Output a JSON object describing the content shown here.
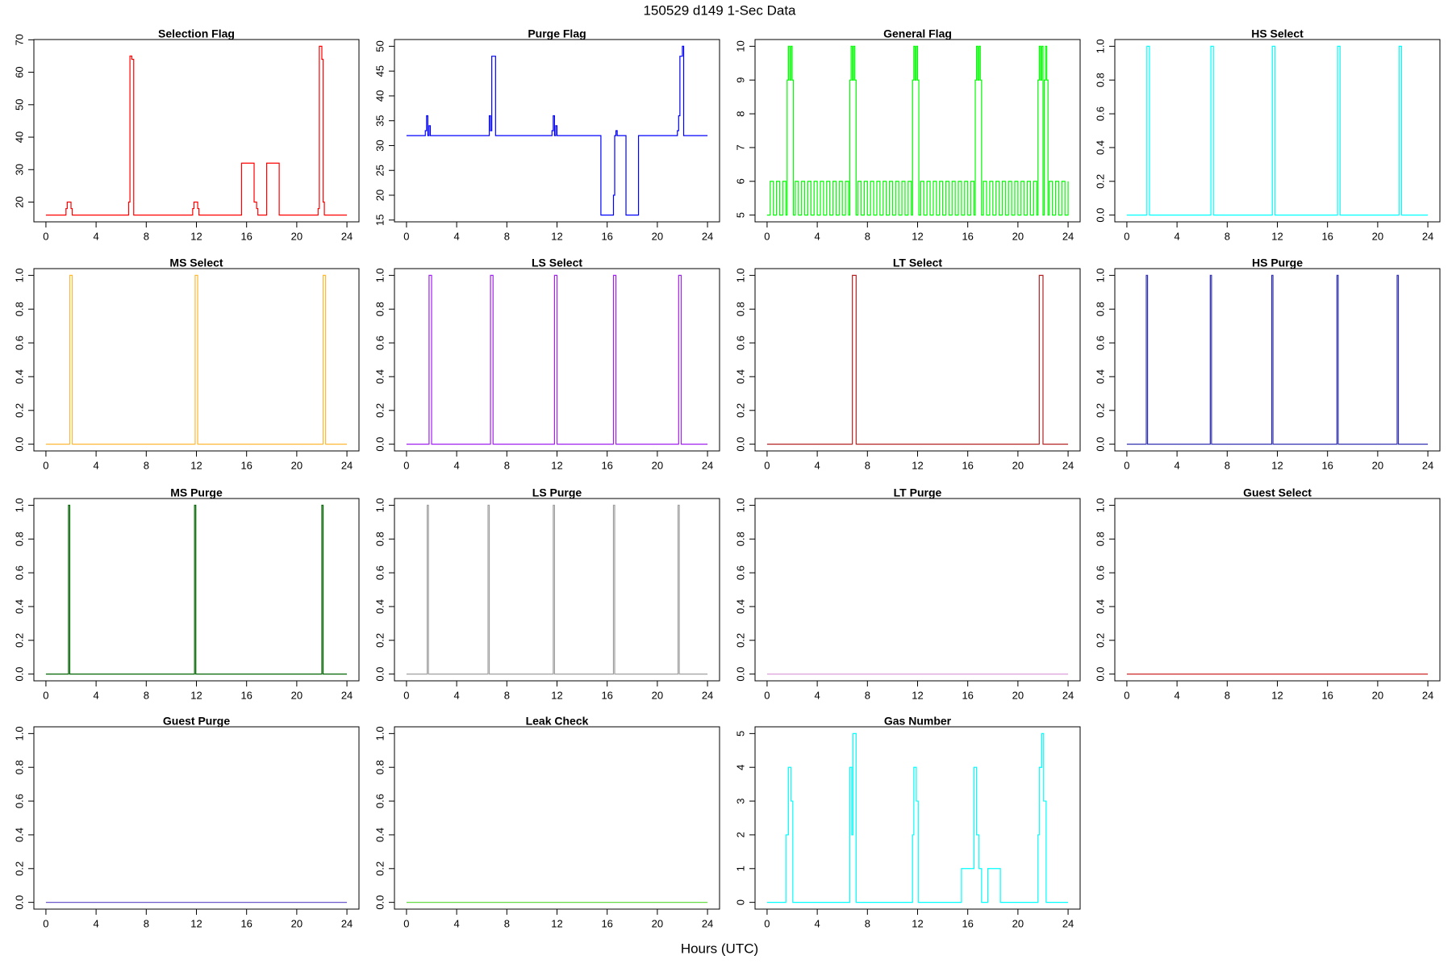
{
  "title": "150529   d149   1-Sec Data",
  "x_label": "Hours (UTC)",
  "chart_data": [
    {
      "type": "step",
      "title": "Selection Flag",
      "color": "#ff0000",
      "x": [
        0,
        1.6,
        1.7,
        2.0,
        2.1,
        6.6,
        6.7,
        6.85,
        7.0,
        11.7,
        11.8,
        12.1,
        12.2,
        15.6,
        16.6,
        16.8,
        16.9,
        17.6,
        18.6,
        21.7,
        21.8,
        22.0,
        22.1,
        22.2,
        24
      ],
      "values": [
        16,
        18,
        20,
        18,
        16,
        20,
        65,
        64,
        16,
        18,
        20,
        18,
        16,
        32,
        20,
        18,
        16,
        32,
        16,
        18,
        68,
        64,
        20,
        16,
        16
      ],
      "xlim": [
        -0.96,
        24.96
      ],
      "ylim": [
        13.92,
        70.08
      ],
      "xticks": [
        0,
        4,
        8,
        12,
        16,
        20,
        24
      ],
      "yticks": [
        20,
        30,
        40,
        50,
        60,
        70
      ]
    },
    {
      "type": "step",
      "title": "Purge Flag",
      "color": "#0000ff",
      "x": [
        0,
        1.5,
        1.6,
        1.7,
        1.8,
        1.9,
        6.6,
        6.7,
        6.8,
        7.1,
        11.6,
        11.7,
        11.8,
        11.9,
        12.0,
        15.5,
        16.5,
        16.6,
        16.7,
        16.8,
        17.5,
        18.5,
        21.6,
        21.7,
        21.8,
        22.0,
        22.1,
        24
      ],
      "values": [
        32,
        33,
        36,
        32,
        34,
        32,
        36,
        33,
        48,
        32,
        33,
        36,
        32,
        34,
        32,
        16,
        20,
        32,
        33,
        32,
        16,
        32,
        33,
        36,
        48,
        50,
        32,
        32
      ],
      "xlim": [
        -0.96,
        24.96
      ],
      "ylim": [
        14.64,
        51.36
      ],
      "xticks": [
        0,
        4,
        8,
        12,
        16,
        20,
        24
      ],
      "yticks": [
        15,
        20,
        25,
        30,
        35,
        40,
        45,
        50
      ]
    },
    {
      "type": "step",
      "title": "General Flag",
      "color": "#00ff00",
      "x": [
        0,
        0.25,
        0.5,
        0.75,
        1,
        1.25,
        1.5,
        1.6,
        1.7,
        1.8,
        1.9,
        2.0,
        2.1,
        2.25,
        2.5,
        2.75,
        3,
        3.25,
        3.5,
        3.75,
        4,
        4.25,
        4.5,
        4.75,
        5,
        5.25,
        5.5,
        5.75,
        6,
        6.25,
        6.5,
        6.6,
        6.7,
        6.8,
        6.9,
        7.0,
        7.1,
        7.25,
        7.5,
        7.75,
        8,
        8.25,
        8.5,
        8.75,
        9,
        9.25,
        9.5,
        9.75,
        10,
        10.25,
        10.5,
        10.75,
        11,
        11.25,
        11.5,
        11.6,
        11.7,
        11.8,
        11.9,
        12.0,
        12.1,
        12.25,
        12.5,
        12.75,
        13,
        13.25,
        13.5,
        13.75,
        14,
        14.25,
        14.5,
        14.75,
        15,
        15.25,
        15.5,
        15.75,
        16,
        16.25,
        16.5,
        16.6,
        16.7,
        16.8,
        16.9,
        17.0,
        17.1,
        17.25,
        17.5,
        17.75,
        18,
        18.25,
        18.5,
        18.75,
        19,
        19.25,
        19.5,
        19.75,
        20,
        20.25,
        20.5,
        20.75,
        21,
        21.25,
        21.5,
        21.6,
        21.7,
        21.8,
        21.9,
        22.0,
        22.1,
        22.2,
        22.3,
        22.4,
        22.5,
        22.75,
        23,
        23.25,
        23.5,
        23.75,
        24
      ],
      "values": [
        5,
        6,
        5,
        6,
        5,
        6,
        5,
        9,
        10,
        9,
        10,
        9,
        5,
        6,
        5,
        6,
        5,
        6,
        5,
        6,
        5,
        6,
        5,
        6,
        5,
        6,
        5,
        6,
        5,
        6,
        5,
        9,
        10,
        9,
        10,
        9,
        5,
        6,
        5,
        6,
        5,
        6,
        5,
        6,
        5,
        6,
        5,
        6,
        5,
        6,
        5,
        6,
        5,
        6,
        5,
        9,
        10,
        9,
        10,
        9,
        5,
        6,
        5,
        6,
        5,
        6,
        5,
        6,
        5,
        6,
        5,
        6,
        5,
        6,
        5,
        6,
        5,
        6,
        5,
        9,
        10,
        9,
        10,
        9,
        5,
        6,
        5,
        6,
        5,
        6,
        5,
        6,
        5,
        6,
        5,
        6,
        5,
        6,
        5,
        6,
        5,
        6,
        5,
        9,
        10,
        9,
        10,
        5,
        9,
        10,
        9,
        5,
        6,
        5,
        6,
        5,
        6,
        5,
        6
      ],
      "xlim": [
        -0.96,
        24.96
      ],
      "ylim": [
        4.8,
        10.2
      ],
      "xticks": [
        0,
        4,
        8,
        12,
        16,
        20,
        24
      ],
      "yticks": [
        5,
        6,
        7,
        8,
        9,
        10
      ]
    },
    {
      "type": "step",
      "title": "HS Select",
      "color": "#00ffff",
      "x": [
        0,
        1.6,
        1.8,
        6.7,
        6.9,
        11.6,
        11.8,
        16.8,
        17.0,
        21.7,
        21.9,
        24
      ],
      "values": [
        0,
        1,
        0,
        1,
        0,
        1,
        0,
        1,
        0,
        1,
        0,
        0
      ],
      "xlim": [
        -0.96,
        24.96
      ],
      "ylim": [
        -0.04,
        1.04
      ],
      "xticks": [
        0,
        4,
        8,
        12,
        16,
        20,
        24
      ],
      "yticks": [
        {
          "value": 0,
          "label": "0.0"
        },
        0.2,
        0.4,
        0.6,
        0.8,
        {
          "value": 1,
          "label": "1.0"
        }
      ]
    },
    {
      "type": "step",
      "title": "MS Select",
      "color": "#ffb833",
      "x": [
        0,
        1.9,
        2.1,
        11.9,
        12.1,
        22.1,
        22.3,
        24
      ],
      "values": [
        0,
        1,
        0,
        1,
        0,
        1,
        0,
        0
      ],
      "xlim": [
        -0.96,
        24.96
      ],
      "ylim": [
        -0.04,
        1.04
      ],
      "xticks": [
        0,
        4,
        8,
        12,
        16,
        20,
        24
      ],
      "yticks": [
        {
          "value": 0,
          "label": "0.0"
        },
        0.2,
        0.4,
        0.6,
        0.8,
        {
          "value": 1,
          "label": "1.0"
        }
      ]
    },
    {
      "type": "step",
      "title": "LS Select",
      "color": "#a020f0",
      "x": [
        0,
        1.8,
        2.0,
        6.7,
        6.9,
        11.8,
        12.0,
        16.5,
        16.7,
        21.7,
        21.9,
        24
      ],
      "values": [
        0,
        1,
        0,
        1,
        0,
        1,
        0,
        1,
        0,
        1,
        0,
        0
      ],
      "xlim": [
        -0.96,
        24.96
      ],
      "ylim": [
        -0.04,
        1.04
      ],
      "xticks": [
        0,
        4,
        8,
        12,
        16,
        20,
        24
      ],
      "yticks": [
        {
          "value": 0,
          "label": "0.0"
        },
        0.2,
        0.4,
        0.6,
        0.8,
        {
          "value": 1,
          "label": "1.0"
        }
      ]
    },
    {
      "type": "step",
      "title": "LT Select",
      "color": "#b22222",
      "x": [
        0,
        6.8,
        7.1,
        21.7,
        22.0,
        24
      ],
      "values": [
        0,
        1,
        0,
        1,
        0,
        0
      ],
      "xlim": [
        -0.96,
        24.96
      ],
      "ylim": [
        -0.04,
        1.04
      ],
      "xticks": [
        0,
        4,
        8,
        12,
        16,
        20,
        24
      ],
      "yticks": [
        {
          "value": 0,
          "label": "0.0"
        },
        0.2,
        0.4,
        0.6,
        0.8,
        {
          "value": 1,
          "label": "1.0"
        }
      ]
    },
    {
      "type": "step",
      "title": "HS Purge",
      "color": "#3030b0",
      "x": [
        0,
        1.55,
        1.65,
        6.65,
        6.75,
        11.55,
        11.65,
        16.75,
        16.85,
        21.55,
        21.65,
        24
      ],
      "values": [
        0,
        1,
        0,
        1,
        0,
        1,
        0,
        1,
        0,
        1,
        0,
        0
      ],
      "xlim": [
        -0.96,
        24.96
      ],
      "ylim": [
        -0.04,
        1.04
      ],
      "xticks": [
        0,
        4,
        8,
        12,
        16,
        20,
        24
      ],
      "yticks": [
        {
          "value": 0,
          "label": "0.0"
        },
        0.2,
        0.4,
        0.6,
        0.8,
        {
          "value": 1,
          "label": "1.0"
        }
      ]
    },
    {
      "type": "step",
      "title": "MS Purge",
      "color": "#006400",
      "x": [
        0,
        1.8,
        1.9,
        11.85,
        11.95,
        22.0,
        22.1,
        24
      ],
      "values": [
        0,
        1,
        0,
        1,
        0,
        1,
        0,
        0
      ],
      "xlim": [
        -0.96,
        24.96
      ],
      "ylim": [
        -0.04,
        1.04
      ],
      "xticks": [
        0,
        4,
        8,
        12,
        16,
        20,
        24
      ],
      "yticks": [
        {
          "value": 0,
          "label": "0.0"
        },
        0.2,
        0.4,
        0.6,
        0.8,
        {
          "value": 1,
          "label": "1.0"
        }
      ]
    },
    {
      "type": "step",
      "title": "LS Purge",
      "color": "#a0a0a0",
      "x": [
        0,
        1.65,
        1.75,
        6.5,
        6.6,
        11.7,
        11.8,
        16.5,
        16.6,
        21.65,
        21.75,
        24
      ],
      "values": [
        0,
        1,
        0,
        1,
        0,
        1,
        0,
        1,
        0,
        1,
        0,
        0
      ],
      "xlim": [
        -0.96,
        24.96
      ],
      "ylim": [
        -0.04,
        1.04
      ],
      "xticks": [
        0,
        4,
        8,
        12,
        16,
        20,
        24
      ],
      "yticks": [
        {
          "value": 0,
          "label": "0.0"
        },
        0.2,
        0.4,
        0.6,
        0.8,
        {
          "value": 1,
          "label": "1.0"
        }
      ]
    },
    {
      "type": "step",
      "title": "LT Purge",
      "color": "#dda0dd",
      "x": [
        0,
        24
      ],
      "values": [
        0,
        0
      ],
      "xlim": [
        -0.96,
        24.96
      ],
      "ylim": [
        -0.04,
        1.04
      ],
      "xticks": [
        0,
        4,
        8,
        12,
        16,
        20,
        24
      ],
      "yticks": [
        {
          "value": 0,
          "label": "0.0"
        },
        0.2,
        0.4,
        0.6,
        0.8,
        {
          "value": 1,
          "label": "1.0"
        }
      ]
    },
    {
      "type": "step",
      "title": "Guest Select",
      "color": "#cd2626",
      "x": [
        0,
        24
      ],
      "values": [
        0,
        0
      ],
      "xlim": [
        -0.96,
        24.96
      ],
      "ylim": [
        -0.04,
        1.04
      ],
      "xticks": [
        0,
        4,
        8,
        12,
        16,
        20,
        24
      ],
      "yticks": [
        {
          "value": 0,
          "label": "0.0"
        },
        0.2,
        0.4,
        0.6,
        0.8,
        {
          "value": 1,
          "label": "1.0"
        }
      ]
    },
    {
      "type": "step",
      "title": "Guest Purge",
      "color": "#6a5acd",
      "x": [
        0,
        24
      ],
      "values": [
        0,
        0
      ],
      "xlim": [
        -0.96,
        24.96
      ],
      "ylim": [
        -0.04,
        1.04
      ],
      "xticks": [
        0,
        4,
        8,
        12,
        16,
        20,
        24
      ],
      "yticks": [
        {
          "value": 0,
          "label": "0.0"
        },
        0.2,
        0.4,
        0.6,
        0.8,
        {
          "value": 1,
          "label": "1.0"
        }
      ]
    },
    {
      "type": "step",
      "title": "Leak Check",
      "color": "#66dd44",
      "x": [
        0,
        24
      ],
      "values": [
        0,
        0
      ],
      "xlim": [
        -0.96,
        24.96
      ],
      "ylim": [
        -0.04,
        1.04
      ],
      "xticks": [
        0,
        4,
        8,
        12,
        16,
        20,
        24
      ],
      "yticks": [
        {
          "value": 0,
          "label": "0.0"
        },
        0.2,
        0.4,
        0.6,
        0.8,
        {
          "value": 1,
          "label": "1.0"
        }
      ]
    },
    {
      "type": "step",
      "title": "Gas Number",
      "color": "#00ffff",
      "x": [
        0,
        1.5,
        1.7,
        1.9,
        2.05,
        6.6,
        6.75,
        6.85,
        7.1,
        11.6,
        11.7,
        11.9,
        12.05,
        15.5,
        16.5,
        16.7,
        16.9,
        17.1,
        17.6,
        18.6,
        21.6,
        21.7,
        21.9,
        22.05,
        22.25,
        24
      ],
      "values": [
        0,
        2,
        4,
        3,
        0,
        4,
        2,
        5,
        0,
        2,
        4,
        3,
        0,
        1,
        4,
        2,
        1,
        0,
        1,
        0,
        2,
        4,
        5,
        3,
        0,
        0
      ],
      "xlim": [
        -0.96,
        24.96
      ],
      "ylim": [
        -0.2,
        5.2
      ],
      "xticks": [
        0,
        4,
        8,
        12,
        16,
        20,
        24
      ],
      "yticks": [
        0,
        1,
        2,
        3,
        4,
        5
      ]
    }
  ]
}
